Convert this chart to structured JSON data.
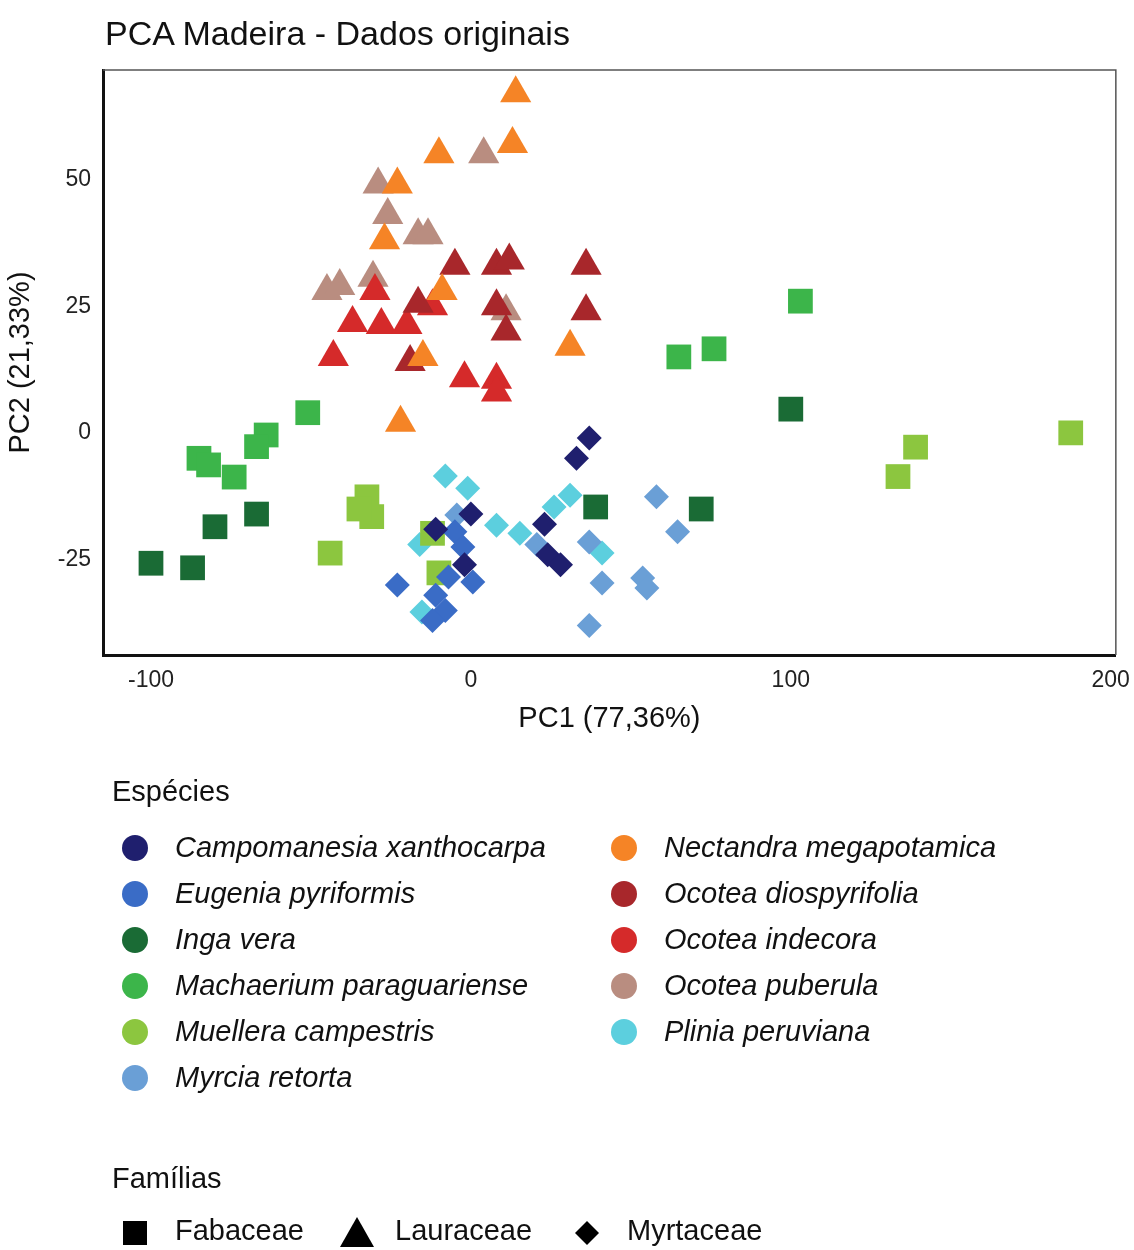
{
  "chart_data": {
    "type": "scatter",
    "title": "PCA Madeira - Dados originais",
    "xlabel": "PC1 (77,36%)",
    "ylabel": "PC2 (21,33%)",
    "legend_title": "Espécies",
    "xlim": [
      -115,
      201.6
    ],
    "ylim": [
      -43.8,
      71.6
    ],
    "xticks": [
      -100,
      0,
      100,
      200
    ],
    "yticks": [
      -25,
      0,
      25,
      50
    ],
    "grid": false,
    "legend": "bottom",
    "series": [
      {
        "name": "Campomanesia xanthocarpa",
        "color": "#1f1f6e",
        "marker": "diamond",
        "x": [
          37,
          33,
          0,
          -11,
          -2,
          23,
          24,
          28
        ],
        "values": [
          -1,
          -5,
          -16,
          -19,
          -26,
          -18,
          -24,
          -26
        ]
      },
      {
        "name": "Eugenia pyriformis",
        "color": "#3a6cc6",
        "marker": "diamond",
        "x": [
          -23,
          -5,
          -2.5,
          -7,
          0.6,
          -11,
          -8,
          -12
        ],
        "values": [
          -30,
          -19.5,
          -22.5,
          -28.4,
          -29.4,
          -32,
          -35,
          -37
        ]
      },
      {
        "name": "Inga vera",
        "color": "#1a6b35",
        "marker": "square",
        "x": [
          -67,
          -80,
          -100,
          -87,
          39,
          72,
          100
        ],
        "values": [
          -16,
          -18.5,
          -25.7,
          -26.6,
          -14.6,
          -15,
          4.7
        ]
      },
      {
        "name": "Machaerium paraguariense",
        "color": "#3cb54a",
        "marker": "square",
        "x": [
          103,
          65,
          76,
          -51,
          -64,
          -67,
          -85,
          -82,
          -74
        ],
        "values": [
          26,
          15,
          16.6,
          4,
          -0.4,
          -2.7,
          -5,
          -6.3,
          -8.7
        ]
      },
      {
        "name": "Muellera campestris",
        "color": "#8cc63f",
        "marker": "square",
        "x": [
          187.5,
          139,
          133.5,
          -32.5,
          -31,
          -35,
          -44,
          -12,
          -10
        ],
        "values": [
          0,
          -2.8,
          -8.6,
          -12.6,
          -16.5,
          -15,
          -23.7,
          -19.8,
          -27.6
        ]
      },
      {
        "name": "Myrcia retorta",
        "color": "#6a9fd6",
        "marker": "diamond",
        "x": [
          -4.4,
          20.6,
          37,
          58,
          64.6,
          41,
          53.7,
          55,
          37
        ],
        "values": [
          -16.2,
          -22,
          -21.5,
          -12.6,
          -19.5,
          -29.6,
          -28.6,
          -30.6,
          -38
        ]
      },
      {
        "name": "Nectandra megapotamica",
        "color": "#f58426",
        "marker": "triangle",
        "x": [
          14,
          13,
          -10,
          -23,
          -27,
          -9,
          -15,
          31,
          -22
        ],
        "values": [
          67,
          57,
          55,
          49,
          38,
          28,
          15,
          17,
          2
        ]
      },
      {
        "name": "Ocotea diospyrifolia",
        "color": "#a8272b",
        "marker": "triangle",
        "x": [
          -5,
          8,
          12,
          36,
          8,
          36,
          11,
          -16.5,
          -19
        ],
        "values": [
          33,
          33,
          34,
          33,
          25,
          24,
          20,
          25.5,
          14
        ]
      },
      {
        "name": "Ocotea indecora",
        "color": "#d52a2a",
        "marker": "triangle",
        "x": [
          -30,
          -37,
          -28,
          -20,
          -12,
          -43,
          -2,
          8,
          8
        ],
        "values": [
          28,
          21.7,
          21.3,
          21.3,
          25,
          15,
          10.8,
          10.5,
          8
        ]
      },
      {
        "name": "Ocotea puberula",
        "color": "#b98d80",
        "marker": "triangle",
        "x": [
          -29,
          4,
          -26,
          -16.5,
          -13.4,
          -45,
          -41,
          -30.6,
          11
        ],
        "values": [
          49,
          55,
          43,
          39,
          39,
          28,
          29,
          30.6,
          24
        ]
      },
      {
        "name": "Plinia peruviana",
        "color": "#5ccfde",
        "marker": "diamond",
        "x": [
          -8,
          -1,
          8,
          15.3,
          26,
          31,
          41,
          -15.3,
          -16
        ],
        "values": [
          -8.5,
          -10.9,
          -18.2,
          -19.8,
          -14.6,
          -12.3,
          -23.7,
          -35.3,
          -22
        ]
      }
    ],
    "annotations": [
      "Famílias",
      "Fabaceae",
      "Lauraceae",
      "Myrtaceae"
    ]
  }
}
